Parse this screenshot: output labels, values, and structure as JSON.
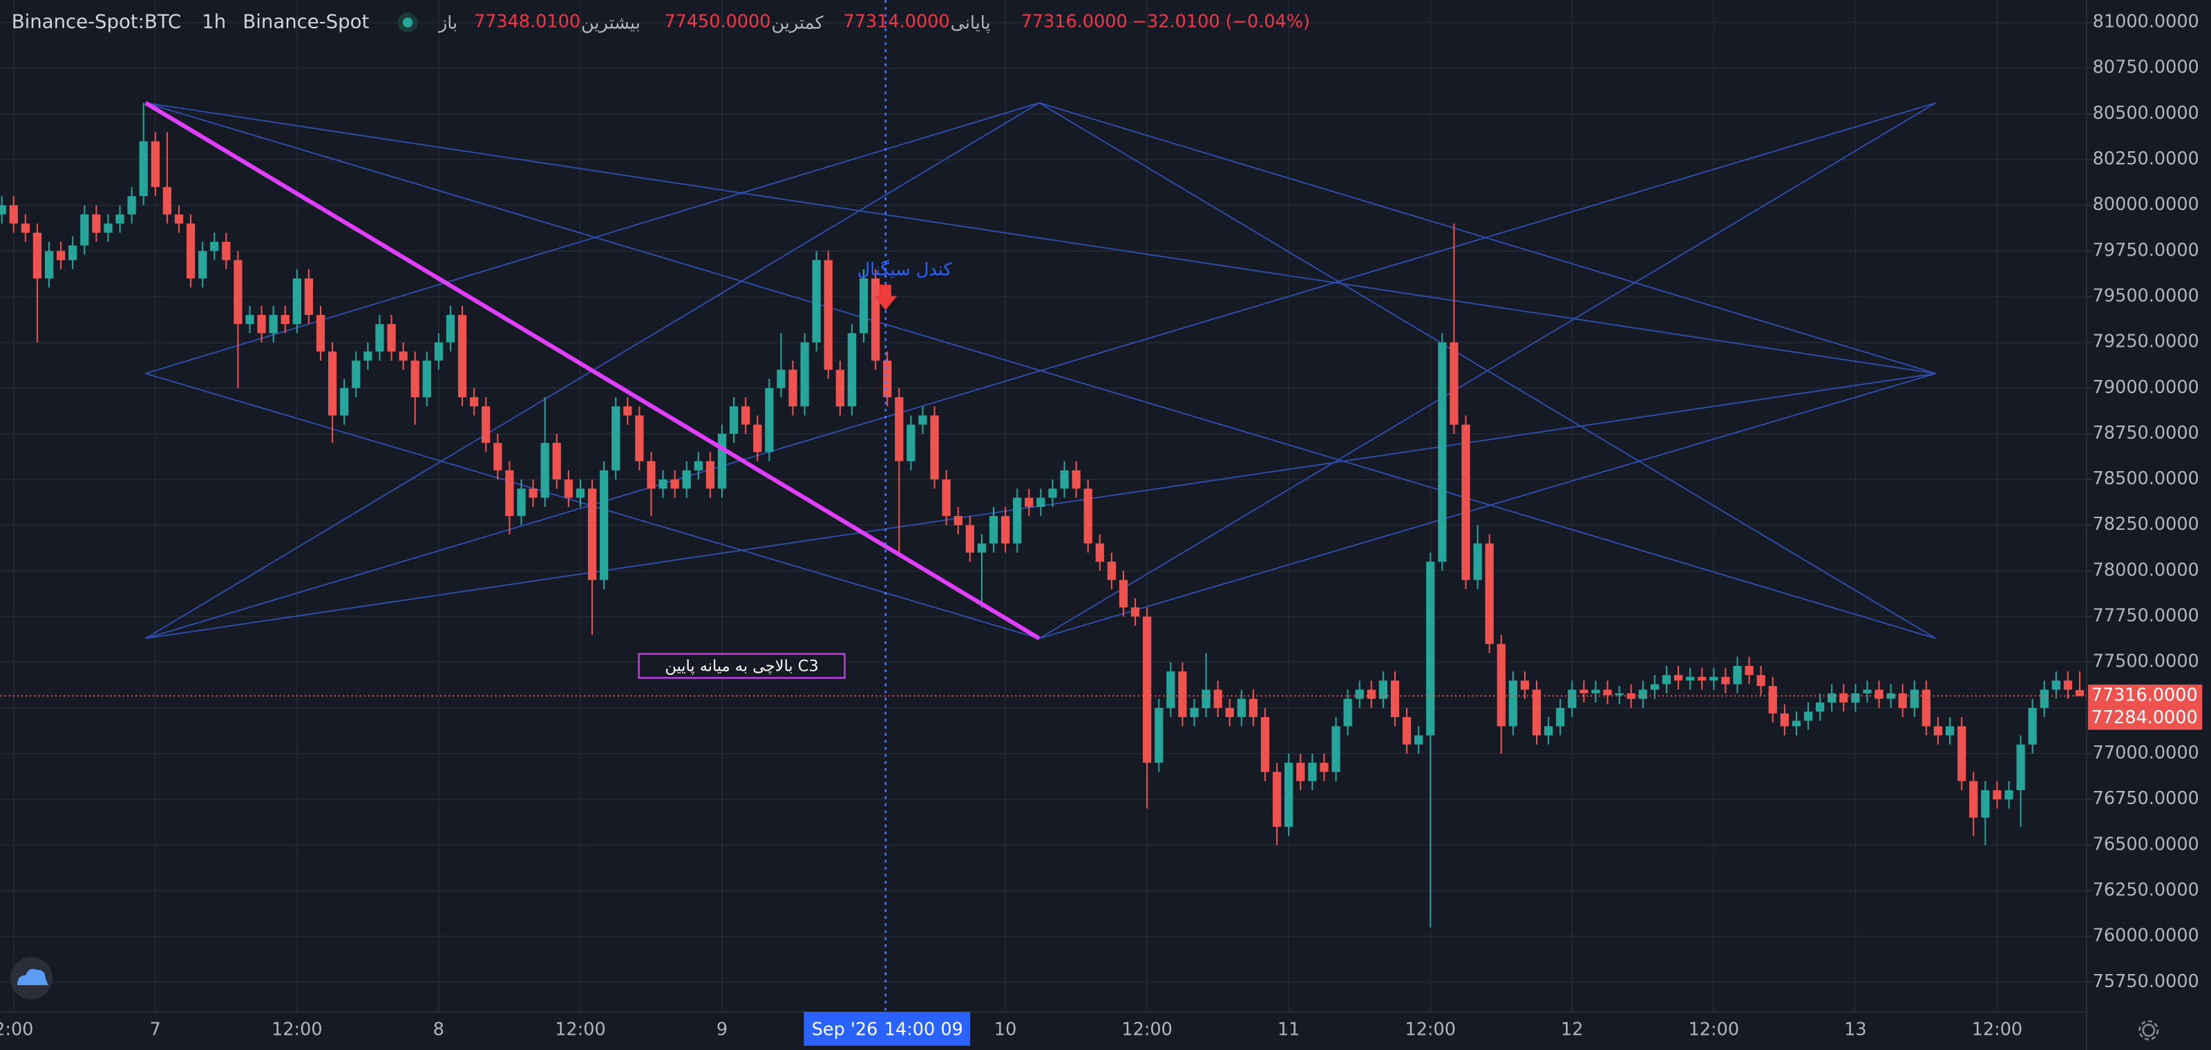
{
  "header": {
    "symbol": "Binance-Spot:BTC",
    "interval": "1h",
    "exchange": "Binance-Spot",
    "fields": [
      {
        "label": "باز",
        "value": "77348.0100"
      },
      {
        "label": "بیشترین",
        "value": "77450.0000"
      },
      {
        "label": "کمترین",
        "value": "77314.0000"
      },
      {
        "label": "پایانی",
        "value": "77316.0000"
      }
    ],
    "change": "−32.0100 (−0.04%)"
  },
  "chart_data": {
    "type": "candlestick",
    "categories": [
      null,
      "2:00",
      null,
      null,
      null,
      null,
      null,
      null,
      null,
      null,
      null,
      null,
      null,
      "7",
      null,
      null,
      null,
      null,
      null,
      null,
      null,
      null,
      null,
      null,
      null,
      "12:00",
      null,
      null,
      null,
      null,
      null,
      null,
      null,
      null,
      null,
      null,
      null,
      "8",
      null,
      null,
      null,
      null,
      null,
      null,
      null,
      null,
      null,
      null,
      null,
      "12:00",
      null,
      null,
      null,
      null,
      null,
      null,
      null,
      null,
      null,
      null,
      null,
      "9",
      null,
      null,
      null,
      null,
      null,
      null,
      null,
      null,
      null,
      null,
      null,
      null,
      null,
      null,
      null,
      null,
      null,
      null,
      null,
      null,
      null,
      null,
      null,
      "10",
      null,
      null,
      null,
      null,
      null,
      null,
      null,
      null,
      null,
      null,
      null,
      "12:00",
      null,
      null,
      null,
      null,
      null,
      null,
      null,
      null,
      null,
      null,
      null,
      "11",
      null,
      null,
      null,
      null,
      null,
      null,
      null,
      null,
      null,
      null,
      null,
      "12:00",
      null,
      null,
      null,
      null,
      null,
      null,
      null,
      null,
      null,
      null,
      null,
      "12",
      null,
      null,
      null,
      null,
      null,
      null,
      null,
      null,
      null,
      null,
      null,
      "12:00",
      null,
      null,
      null,
      null,
      null,
      null,
      null,
      null,
      null,
      null,
      null,
      "13",
      null,
      null,
      null,
      null,
      null,
      null,
      null,
      null,
      null,
      null,
      null,
      "12:00",
      null,
      null,
      null,
      null,
      null,
      null,
      null
    ],
    "open": [
      79950,
      80000,
      79900,
      79850,
      79600,
      79750,
      79700,
      79780,
      79950,
      79850,
      79900,
      79950,
      80050,
      80350,
      80100,
      79950,
      79900,
      79600,
      79750,
      79800,
      79700,
      79350,
      79400,
      79300,
      79400,
      79350,
      79600,
      79400,
      79200,
      78850,
      79000,
      79150,
      79200,
      79350,
      79200,
      79150,
      78950,
      79150,
      79250,
      79400,
      78950,
      78900,
      78700,
      78550,
      78300,
      78450,
      78400,
      78700,
      78500,
      78400,
      78450,
      77950,
      78550,
      78900,
      78850,
      78600,
      78450,
      78500,
      78450,
      78550,
      78600,
      78450,
      78750,
      78900,
      78800,
      78650,
      79000,
      79100,
      78900,
      79250,
      79700,
      79100,
      78900,
      79300,
      79600,
      79150,
      78950,
      78600,
      78800,
      78850,
      78500,
      78300,
      78250,
      78100,
      78150,
      78300,
      78150,
      78400,
      78350,
      78400,
      78450,
      78550,
      78450,
      78150,
      78050,
      77950,
      77800,
      77750,
      76950,
      77250,
      77450,
      77200,
      77250,
      77350,
      77250,
      77200,
      77300,
      77200,
      76900,
      76600,
      76950,
      76850,
      76950,
      76900,
      77150,
      77300,
      77350,
      77300,
      77400,
      77200,
      77050,
      77100,
      78050,
      79250,
      78800,
      77950,
      78150,
      77600,
      77150,
      77400,
      77350,
      77100,
      77150,
      77250,
      77350,
      77330,
      77350,
      77320,
      77330,
      77300,
      77350,
      77380,
      77430,
      77400,
      77420,
      77400,
      77420,
      77380,
      77480,
      77430,
      77370,
      77220,
      77150,
      77180,
      77230,
      77280,
      77330,
      77280,
      77330,
      77350,
      77300,
      77330,
      77250,
      77350,
      77150,
      77100,
      77150,
      76850,
      76650,
      76800,
      76750,
      76800,
      77050,
      77250,
      77350,
      77400,
      77348.01
    ],
    "high": [
      80050,
      80050,
      79950,
      79900,
      79800,
      79800,
      79830,
      80000,
      80000,
      79950,
      80000,
      80100,
      80560,
      80400,
      80400,
      80000,
      79950,
      79800,
      79850,
      79850,
      79750,
      79450,
      79450,
      79450,
      79450,
      79650,
      79650,
      79450,
      79250,
      79050,
      79200,
      79250,
      79400,
      79400,
      79250,
      79200,
      79200,
      79300,
      79450,
      79450,
      79000,
      78950,
      78750,
      78600,
      78500,
      78500,
      78950,
      78750,
      78550,
      78500,
      78500,
      78600,
      78950,
      78950,
      78900,
      78650,
      78550,
      78550,
      78600,
      78650,
      78650,
      78800,
      78950,
      78950,
      78850,
      79050,
      79300,
      79150,
      79300,
      79750,
      79750,
      79150,
      79350,
      79650,
      79650,
      79200,
      79000,
      78850,
      78900,
      78900,
      78550,
      78350,
      78300,
      78200,
      78350,
      78350,
      78450,
      78450,
      78450,
      78500,
      78600,
      78600,
      78500,
      78200,
      78100,
      78000,
      77850,
      77800,
      77300,
      77500,
      77500,
      77300,
      77550,
      77400,
      77300,
      77350,
      77350,
      77250,
      76950,
      77000,
      77000,
      77000,
      77000,
      77200,
      77350,
      77400,
      77400,
      77450,
      77450,
      77250,
      77150,
      78100,
      79300,
      79900,
      78850,
      78250,
      78200,
      77650,
      77450,
      77450,
      77400,
      77200,
      77300,
      77400,
      77400,
      77400,
      77400,
      77370,
      77380,
      77400,
      77430,
      77480,
      77480,
      77470,
      77470,
      77470,
      77470,
      77530,
      77530,
      77480,
      77420,
      77270,
      77230,
      77280,
      77330,
      77380,
      77380,
      77380,
      77400,
      77400,
      77380,
      77380,
      77400,
      77400,
      77200,
      77200,
      77200,
      76900,
      76850,
      76850,
      76850,
      77100,
      77300,
      77400,
      77450,
      77450,
      77450
    ],
    "low": [
      79900,
      79850,
      79800,
      79250,
      79550,
      79650,
      79650,
      79730,
      79800,
      79800,
      79850,
      79900,
      80000,
      80050,
      79900,
      79850,
      79550,
      79550,
      79700,
      79650,
      79000,
      79300,
      79250,
      79250,
      79300,
      79300,
      79350,
      79150,
      78700,
      78800,
      78950,
      79100,
      79150,
      79150,
      79100,
      78800,
      78900,
      79100,
      79200,
      78900,
      78850,
      78650,
      78500,
      78200,
      78250,
      78350,
      78350,
      78450,
      78350,
      78350,
      77650,
      77900,
      78500,
      78800,
      78550,
      78300,
      78400,
      78400,
      78400,
      78500,
      78400,
      78400,
      78700,
      78750,
      78600,
      78600,
      78950,
      78850,
      78850,
      79200,
      79050,
      78850,
      78850,
      79250,
      79100,
      78900,
      78100,
      78550,
      78750,
      78450,
      78250,
      78200,
      78050,
      77800,
      78100,
      78100,
      78100,
      78300,
      78300,
      78350,
      78400,
      78400,
      78100,
      78000,
      77900,
      77750,
      77700,
      76700,
      76900,
      77200,
      77150,
      77150,
      77200,
      77200,
      77150,
      77150,
      77150,
      76850,
      76500,
      76550,
      76800,
      76800,
      76850,
      76850,
      77100,
      77250,
      77250,
      77250,
      77150,
      77000,
      77000,
      76050,
      78000,
      78750,
      77900,
      77900,
      77550,
      77000,
      77100,
      77300,
      77050,
      77050,
      77100,
      77200,
      77280,
      77280,
      77270,
      77270,
      77250,
      77250,
      77300,
      77330,
      77350,
      77350,
      77350,
      77350,
      77330,
      77330,
      77380,
      77320,
      77170,
      77100,
      77100,
      77130,
      77180,
      77230,
      77230,
      77230,
      77280,
      77250,
      77250,
      77200,
      77200,
      77100,
      77050,
      77050,
      76800,
      76550,
      76500,
      76700,
      76700,
      76600,
      77000,
      77200,
      77300,
      77300,
      77314
    ],
    "close": [
      80000,
      79900,
      79850,
      79600,
      79750,
      79700,
      79780,
      79950,
      79850,
      79900,
      79950,
      80050,
      80350,
      80100,
      79950,
      79900,
      79600,
      79750,
      79800,
      79700,
      79350,
      79400,
      79300,
      79400,
      79350,
      79600,
      79400,
      79200,
      78850,
      79000,
      79150,
      79200,
      79350,
      79200,
      79150,
      78950,
      79150,
      79250,
      79400,
      78950,
      78900,
      78700,
      78550,
      78300,
      78450,
      78400,
      78700,
      78500,
      78400,
      78450,
      77950,
      78550,
      78900,
      78850,
      78600,
      78450,
      78500,
      78450,
      78550,
      78600,
      78450,
      78750,
      78900,
      78800,
      78650,
      79000,
      79100,
      78900,
      79250,
      79700,
      79100,
      78900,
      79300,
      79600,
      79150,
      78950,
      78600,
      78800,
      78850,
      78500,
      78300,
      78250,
      78100,
      78150,
      78300,
      78150,
      78400,
      78350,
      78400,
      78450,
      78550,
      78450,
      78150,
      78050,
      77950,
      77800,
      77750,
      76950,
      77250,
      77450,
      77200,
      77250,
      77350,
      77250,
      77200,
      77300,
      77200,
      76900,
      76600,
      76950,
      76850,
      76950,
      76900,
      77150,
      77300,
      77350,
      77300,
      77400,
      77200,
      77050,
      77100,
      78050,
      79250,
      78800,
      77950,
      78150,
      77600,
      77150,
      77400,
      77350,
      77100,
      77150,
      77250,
      77350,
      77330,
      77350,
      77320,
      77330,
      77300,
      77350,
      77380,
      77430,
      77400,
      77420,
      77400,
      77420,
      77380,
      77480,
      77430,
      77370,
      77220,
      77150,
      77180,
      77230,
      77280,
      77330,
      77280,
      77330,
      77350,
      77300,
      77330,
      77250,
      77350,
      77150,
      77100,
      77150,
      76850,
      76650,
      76800,
      76750,
      76800,
      77050,
      77250,
      77350,
      77400,
      77350,
      77316
    ],
    "up_color": "#26a69a",
    "down_color": "#ef5350",
    "ylim": [
      75587,
      81123
    ],
    "yticks": [
      {
        "value": 75750,
        "label": "75750.0000"
      },
      {
        "value": 76000,
        "label": "76000.0000"
      },
      {
        "value": 76250,
        "label": "76250.0000"
      },
      {
        "value": 76500,
        "label": "76500.0000"
      },
      {
        "value": 76750,
        "label": "76750.0000"
      },
      {
        "value": 77000,
        "label": "77000.0000"
      },
      {
        "value": 77250,
        "label": "77250.0000"
      },
      {
        "value": 77500,
        "label": "77500.0000"
      },
      {
        "value": 77750,
        "label": "77750.0000"
      },
      {
        "value": 78000,
        "label": "78000.0000"
      },
      {
        "value": 78250,
        "label": "78250.0000"
      },
      {
        "value": 78500,
        "label": "78500.0000"
      },
      {
        "value": 78750,
        "label": "78750.0000"
      },
      {
        "value": 79000,
        "label": "79000.0000"
      },
      {
        "value": 79250,
        "label": "79250.0000"
      },
      {
        "value": 79500,
        "label": "79500.0000"
      },
      {
        "value": 79750,
        "label": "79750.0000"
      },
      {
        "value": 80000,
        "label": "80000.0000"
      },
      {
        "value": 80250,
        "label": "80250.0000"
      },
      {
        "value": 80500,
        "label": "80500.0000"
      },
      {
        "value": 80750,
        "label": "80750.0000"
      },
      {
        "value": 81000,
        "label": "81000.0000"
      }
    ],
    "grid": true,
    "price_markers": [
      {
        "value": 77316,
        "label": "77316.0000"
      },
      {
        "value": 77284,
        "label": "77284.0000"
      }
    ],
    "crosshair": {
      "date": "Sep '26",
      "time": "14:00 09"
    },
    "annotations": {
      "signal": "کندل سیگنال",
      "box": "بالاچی به میانه پایین C3"
    }
  }
}
